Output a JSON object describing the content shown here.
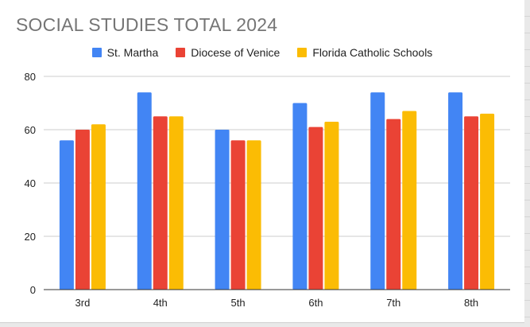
{
  "chart_data": {
    "type": "bar",
    "title": "SOCIAL STUDIES TOTAL 2024",
    "categories": [
      "3rd",
      "4th",
      "5th",
      "6th",
      "7th",
      "8th"
    ],
    "series": [
      {
        "name": "St. Martha",
        "color": "#4285F4",
        "values": [
          56,
          74,
          60,
          70,
          74,
          74
        ]
      },
      {
        "name": "Diocese of Venice",
        "color": "#EA4335",
        "values": [
          60,
          65,
          56,
          61,
          64,
          65
        ]
      },
      {
        "name": "Florida Catholic Schools",
        "color": "#FBBC04",
        "values": [
          62,
          65,
          56,
          63,
          67,
          66
        ]
      }
    ],
    "ylim": [
      0,
      80
    ],
    "yticks": [
      0,
      20,
      40,
      60,
      80
    ],
    "xlabel": "",
    "ylabel": "",
    "grid": true,
    "legend_position": "top"
  }
}
